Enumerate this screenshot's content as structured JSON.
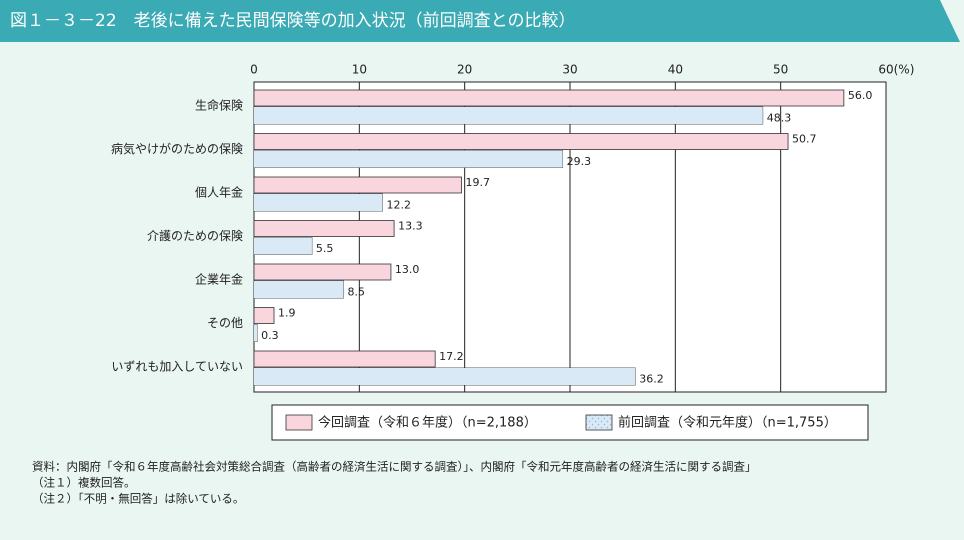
{
  "chart_data": {
    "type": "barh",
    "title": "図１－３－22　老後に備えた民間保険等の加入状況（前回調査との比較）",
    "xlabel": "(%)",
    "categories": [
      "生命保険",
      "病気やけがのための保険",
      "個人年金",
      "介護のための保険",
      "企業年金",
      "その他",
      "いずれも加入していない"
    ],
    "series": [
      {
        "name": "今回調査（令和６年度）（n=2,188）",
        "color": "#f9d5de",
        "values": [
          56.0,
          50.7,
          19.7,
          13.3,
          13.0,
          1.9,
          17.2
        ],
        "value_labels": [
          "56.0",
          "50.7",
          "19.7",
          "13.3",
          "13.0",
          "1.9",
          "17.2"
        ]
      },
      {
        "name": "前回調査（令和元年度）（n=1,755）",
        "color": "#d9e9f6",
        "values": [
          48.3,
          29.3,
          12.2,
          5.5,
          8.5,
          0.3,
          36.2
        ],
        "value_labels": [
          "48.3",
          "29.3",
          "12.2",
          "5.5",
          "8.5",
          "0.3",
          "36.2"
        ]
      }
    ],
    "xlim": [
      0,
      60
    ],
    "xticks": [
      0,
      10,
      20,
      30,
      40,
      50,
      60
    ],
    "grid": true,
    "notes": [
      "資料：内閣府「令和６年度高齢社会対策総合調査（高齢者の経済生活に関する調査）」、内閣府「令和元年度高齢者の経済生活に関する調査」",
      "（注１）複数回答。",
      "（注２）「不明・無回答」は除いている。"
    ]
  }
}
